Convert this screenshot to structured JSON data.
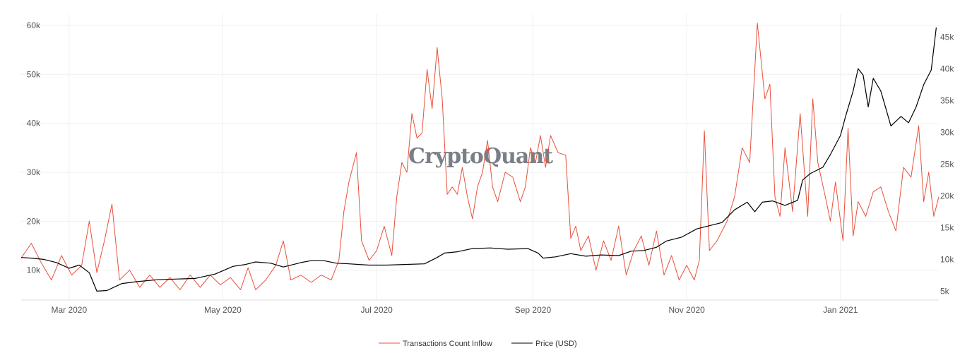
{
  "watermark": "CryptoQuant",
  "chart_data": {
    "type": "line",
    "x_ticks": [
      {
        "date": "2020-03-01",
        "label": "Mar 2020"
      },
      {
        "date": "2020-05-01",
        "label": "May 2020"
      },
      {
        "date": "2020-07-01",
        "label": "Jul 2020"
      },
      {
        "date": "2020-09-01",
        "label": "Sep 2020"
      },
      {
        "date": "2020-11-01",
        "label": "Nov 2020"
      },
      {
        "date": "2021-01-01",
        "label": "Jan 2021"
      }
    ],
    "xlim": [
      "2020-02-11",
      "2021-02-09"
    ],
    "y_left": {
      "ticks": [
        10000,
        20000,
        30000,
        40000,
        50000,
        60000
      ],
      "tick_labels": [
        "10k",
        "20k",
        "30k",
        "40k",
        "50k",
        "60k"
      ],
      "ylim": [
        3900,
        62300
      ]
    },
    "y_right": {
      "ticks": [
        5000,
        10000,
        15000,
        20000,
        25000,
        30000,
        35000,
        40000,
        45000
      ],
      "tick_labels": [
        "5k",
        "10k",
        "15k",
        "20k",
        "25k",
        "30k",
        "35k",
        "40k",
        "45k"
      ],
      "ylim": [
        3600,
        48600
      ]
    },
    "grid": true,
    "legend_position": "bottom-center",
    "series": [
      {
        "name": "Transactions Count Inflow",
        "axis": "left",
        "color": "#e8503a",
        "points": [
          [
            "2020-02-11",
            12500
          ],
          [
            "2020-02-15",
            15500
          ],
          [
            "2020-02-19",
            11500
          ],
          [
            "2020-02-23",
            8000
          ],
          [
            "2020-02-27",
            13000
          ],
          [
            "2020-03-02",
            9000
          ],
          [
            "2020-03-06",
            11000
          ],
          [
            "2020-03-09",
            20000
          ],
          [
            "2020-03-12",
            9500
          ],
          [
            "2020-03-15",
            16000
          ],
          [
            "2020-03-18",
            23500
          ],
          [
            "2020-03-21",
            8000
          ],
          [
            "2020-03-25",
            10000
          ],
          [
            "2020-03-29",
            6500
          ],
          [
            "2020-04-02",
            9000
          ],
          [
            "2020-04-06",
            6500
          ],
          [
            "2020-04-10",
            8500
          ],
          [
            "2020-04-14",
            6000
          ],
          [
            "2020-04-18",
            9000
          ],
          [
            "2020-04-22",
            6500
          ],
          [
            "2020-04-26",
            9000
          ],
          [
            "2020-04-30",
            7000
          ],
          [
            "2020-05-04",
            8500
          ],
          [
            "2020-05-08",
            6000
          ],
          [
            "2020-05-11",
            10500
          ],
          [
            "2020-05-14",
            6000
          ],
          [
            "2020-05-18",
            8000
          ],
          [
            "2020-05-22",
            11000
          ],
          [
            "2020-05-25",
            16000
          ],
          [
            "2020-05-28",
            8000
          ],
          [
            "2020-06-01",
            9000
          ],
          [
            "2020-06-05",
            7500
          ],
          [
            "2020-06-09",
            9000
          ],
          [
            "2020-06-13",
            8000
          ],
          [
            "2020-06-16",
            12000
          ],
          [
            "2020-06-18",
            22000
          ],
          [
            "2020-06-20",
            28000
          ],
          [
            "2020-06-23",
            34000
          ],
          [
            "2020-06-25",
            16000
          ],
          [
            "2020-06-28",
            12000
          ],
          [
            "2020-07-01",
            14000
          ],
          [
            "2020-07-04",
            19000
          ],
          [
            "2020-07-07",
            13000
          ],
          [
            "2020-07-09",
            25000
          ],
          [
            "2020-07-11",
            32000
          ],
          [
            "2020-07-13",
            30000
          ],
          [
            "2020-07-15",
            42000
          ],
          [
            "2020-07-17",
            37000
          ],
          [
            "2020-07-19",
            38000
          ],
          [
            "2020-07-21",
            51000
          ],
          [
            "2020-07-23",
            43000
          ],
          [
            "2020-07-25",
            55500
          ],
          [
            "2020-07-27",
            45000
          ],
          [
            "2020-07-29",
            25500
          ],
          [
            "2020-07-31",
            27000
          ],
          [
            "2020-08-02",
            25500
          ],
          [
            "2020-08-04",
            31000
          ],
          [
            "2020-08-06",
            25000
          ],
          [
            "2020-08-08",
            20500
          ],
          [
            "2020-08-10",
            27000
          ],
          [
            "2020-08-12",
            30000
          ],
          [
            "2020-08-14",
            36500
          ],
          [
            "2020-08-16",
            27000
          ],
          [
            "2020-08-18",
            24000
          ],
          [
            "2020-08-21",
            30000
          ],
          [
            "2020-08-24",
            29000
          ],
          [
            "2020-08-27",
            24000
          ],
          [
            "2020-08-29",
            27000
          ],
          [
            "2020-08-31",
            35000
          ],
          [
            "2020-09-02",
            32000
          ],
          [
            "2020-09-04",
            37500
          ],
          [
            "2020-09-06",
            31000
          ],
          [
            "2020-09-08",
            37500
          ],
          [
            "2020-09-11",
            34000
          ],
          [
            "2020-09-14",
            33500
          ],
          [
            "2020-09-16",
            16500
          ],
          [
            "2020-09-18",
            19000
          ],
          [
            "2020-09-20",
            14000
          ],
          [
            "2020-09-23",
            17000
          ],
          [
            "2020-09-26",
            10000
          ],
          [
            "2020-09-29",
            16000
          ],
          [
            "2020-10-02",
            12000
          ],
          [
            "2020-10-05",
            19000
          ],
          [
            "2020-10-08",
            9000
          ],
          [
            "2020-10-11",
            14000
          ],
          [
            "2020-10-14",
            17000
          ],
          [
            "2020-10-17",
            11000
          ],
          [
            "2020-10-20",
            18000
          ],
          [
            "2020-10-23",
            9000
          ],
          [
            "2020-10-26",
            13000
          ],
          [
            "2020-10-29",
            8000
          ],
          [
            "2020-11-01",
            11000
          ],
          [
            "2020-11-04",
            8000
          ],
          [
            "2020-11-06",
            12000
          ],
          [
            "2020-11-08",
            38500
          ],
          [
            "2020-11-10",
            14000
          ],
          [
            "2020-11-13",
            16000
          ],
          [
            "2020-11-17",
            20000
          ],
          [
            "2020-11-20",
            25000
          ],
          [
            "2020-11-23",
            35000
          ],
          [
            "2020-11-26",
            32000
          ],
          [
            "2020-11-29",
            60500
          ],
          [
            "2020-12-02",
            45000
          ],
          [
            "2020-12-04",
            48000
          ],
          [
            "2020-12-06",
            25000
          ],
          [
            "2020-12-08",
            21000
          ],
          [
            "2020-12-10",
            35000
          ],
          [
            "2020-12-13",
            22000
          ],
          [
            "2020-12-16",
            42000
          ],
          [
            "2020-12-19",
            21000
          ],
          [
            "2020-12-21",
            45000
          ],
          [
            "2020-12-23",
            32000
          ],
          [
            "2020-12-26",
            25000
          ],
          [
            "2020-12-28",
            20000
          ],
          [
            "2020-12-30",
            28000
          ],
          [
            "2021-01-02",
            16000
          ],
          [
            "2021-01-04",
            39000
          ],
          [
            "2021-01-06",
            17000
          ],
          [
            "2021-01-08",
            24000
          ],
          [
            "2021-01-11",
            21000
          ],
          [
            "2021-01-14",
            26000
          ],
          [
            "2021-01-17",
            27000
          ],
          [
            "2021-01-20",
            22000
          ],
          [
            "2021-01-23",
            18000
          ],
          [
            "2021-01-26",
            31000
          ],
          [
            "2021-01-29",
            29000
          ],
          [
            "2021-02-01",
            39500
          ],
          [
            "2021-02-03",
            24000
          ],
          [
            "2021-02-05",
            30000
          ],
          [
            "2021-02-07",
            21000
          ],
          [
            "2021-02-09",
            25000
          ]
        ]
      },
      {
        "name": "Price (USD)",
        "axis": "right",
        "color": "#000000",
        "points": [
          [
            "2020-02-11",
            10300
          ],
          [
            "2020-02-15",
            10200
          ],
          [
            "2020-02-20",
            10000
          ],
          [
            "2020-02-25",
            9500
          ],
          [
            "2020-03-01",
            8600
          ],
          [
            "2020-03-05",
            9100
          ],
          [
            "2020-03-09",
            7900
          ],
          [
            "2020-03-12",
            5000
          ],
          [
            "2020-03-16",
            5100
          ],
          [
            "2020-03-22",
            6200
          ],
          [
            "2020-03-28",
            6500
          ],
          [
            "2020-04-05",
            6800
          ],
          [
            "2020-04-12",
            6900
          ],
          [
            "2020-04-20",
            7000
          ],
          [
            "2020-04-28",
            7700
          ],
          [
            "2020-05-05",
            8900
          ],
          [
            "2020-05-10",
            9200
          ],
          [
            "2020-05-14",
            9600
          ],
          [
            "2020-05-20",
            9400
          ],
          [
            "2020-05-25",
            8800
          ],
          [
            "2020-06-01",
            9500
          ],
          [
            "2020-06-05",
            9800
          ],
          [
            "2020-06-10",
            9800
          ],
          [
            "2020-06-15",
            9400
          ],
          [
            "2020-06-20",
            9300
          ],
          [
            "2020-06-28",
            9100
          ],
          [
            "2020-07-05",
            9100
          ],
          [
            "2020-07-12",
            9200
          ],
          [
            "2020-07-20",
            9300
          ],
          [
            "2020-07-25",
            10300
          ],
          [
            "2020-07-28",
            11000
          ],
          [
            "2020-08-02",
            11200
          ],
          [
            "2020-08-08",
            11700
          ],
          [
            "2020-08-15",
            11800
          ],
          [
            "2020-08-22",
            11600
          ],
          [
            "2020-08-30",
            11700
          ],
          [
            "2020-09-03",
            11000
          ],
          [
            "2020-09-05",
            10200
          ],
          [
            "2020-09-10",
            10400
          ],
          [
            "2020-09-16",
            10900
          ],
          [
            "2020-09-22",
            10500
          ],
          [
            "2020-09-28",
            10700
          ],
          [
            "2020-10-05",
            10600
          ],
          [
            "2020-10-10",
            11300
          ],
          [
            "2020-10-15",
            11400
          ],
          [
            "2020-10-20",
            11900
          ],
          [
            "2020-10-24",
            12900
          ],
          [
            "2020-10-30",
            13500
          ],
          [
            "2020-11-05",
            14800
          ],
          [
            "2020-11-10",
            15300
          ],
          [
            "2020-11-15",
            15800
          ],
          [
            "2020-11-20",
            17800
          ],
          [
            "2020-11-25",
            19000
          ],
          [
            "2020-11-28",
            17500
          ],
          [
            "2020-12-01",
            19000
          ],
          [
            "2020-12-05",
            19200
          ],
          [
            "2020-12-10",
            18500
          ],
          [
            "2020-12-15",
            19300
          ],
          [
            "2020-12-17",
            22500
          ],
          [
            "2020-12-20",
            23500
          ],
          [
            "2020-12-25",
            24500
          ],
          [
            "2020-12-28",
            26500
          ],
          [
            "2021-01-01",
            29500
          ],
          [
            "2021-01-03",
            32500
          ],
          [
            "2021-01-06",
            36500
          ],
          [
            "2021-01-08",
            40000
          ],
          [
            "2021-01-10",
            39000
          ],
          [
            "2021-01-12",
            34000
          ],
          [
            "2021-01-14",
            38500
          ],
          [
            "2021-01-17",
            36500
          ],
          [
            "2021-01-21",
            31000
          ],
          [
            "2021-01-25",
            32500
          ],
          [
            "2021-01-28",
            31500
          ],
          [
            "2021-01-31",
            34000
          ],
          [
            "2021-02-03",
            37500
          ],
          [
            "2021-02-06",
            39800
          ],
          [
            "2021-02-08",
            46500
          ]
        ]
      }
    ]
  }
}
